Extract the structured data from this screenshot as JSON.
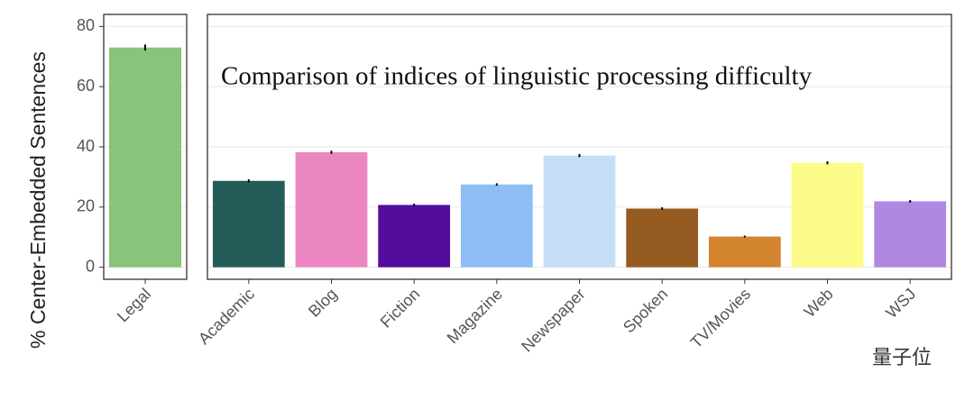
{
  "chart_data": [
    {
      "type": "bar",
      "y_label": "% Center-Embedded Sentences",
      "categories": [
        "Legal"
      ],
      "values": [
        73
      ],
      "errors": [
        1
      ],
      "colors": [
        "#88c47a"
      ],
      "ylim": [
        -4,
        84
      ],
      "yticks": [
        0,
        20,
        40,
        60,
        80
      ],
      "grid": true
    },
    {
      "type": "bar",
      "title": "Comparison of indices of linguistic processing difficulty",
      "categories": [
        "Academic",
        "Blog",
        "Fiction",
        "Magazine",
        "Newspaper",
        "Spoken",
        "TV/Movies",
        "Web",
        "WSJ"
      ],
      "values": [
        28.7,
        38.2,
        20.7,
        27.5,
        37.1,
        19.5,
        10.2,
        34.7,
        21.9
      ],
      "errors": [
        0.5,
        0.5,
        0.4,
        0.4,
        0.5,
        0.4,
        0.3,
        0.5,
        0.4
      ],
      "colors": [
        "#245c59",
        "#ec86c0",
        "#540c9c",
        "#8ebdf5",
        "#c6dff9",
        "#955b20",
        "#d4852f",
        "#fdfb88",
        "#b088e2"
      ],
      "ylim": [
        -4,
        84
      ],
      "yticks": [
        0,
        20,
        40,
        60,
        80
      ],
      "grid": true
    }
  ],
  "watermark": "量子位"
}
